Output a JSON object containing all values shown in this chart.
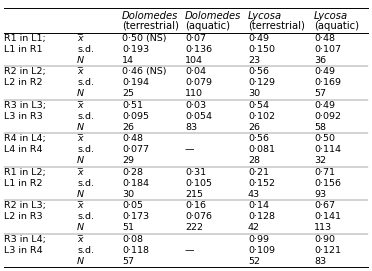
{
  "col_headers_line1": [
    "",
    "",
    "Dolomedes",
    "Dolomedes",
    "Lycosa",
    "Lycosa"
  ],
  "col_headers_line2": [
    "",
    "",
    "(terrestrial)",
    "(aquatic)",
    "(terrestrial)",
    "(aquatic)"
  ],
  "rows": [
    [
      "R1 in L1;",
      "x̅",
      "0·50 (NS)",
      "0·07",
      "0·49",
      "0·48"
    ],
    [
      "L1 in R1",
      "s.d.",
      "0·193",
      "0·136",
      "0·150",
      "0·107"
    ],
    [
      "",
      "N",
      "14",
      "104",
      "23",
      "36"
    ],
    [
      "R2 in L2;",
      "x̅",
      "0·46 (NS)",
      "0·04",
      "0·56",
      "0·49"
    ],
    [
      "L2 in R2",
      "s.d.",
      "0·194",
      "0·079",
      "0·129",
      "0·169"
    ],
    [
      "",
      "N",
      "25",
      "110",
      "30",
      "57"
    ],
    [
      "R3 in L3;",
      "x̅",
      "0·51",
      "0·03",
      "0·54",
      "0·49"
    ],
    [
      "L3 in R3",
      "s.d.",
      "0·095",
      "0·054",
      "0·102",
      "0·092"
    ],
    [
      "",
      "N",
      "26",
      "83",
      "26",
      "58"
    ],
    [
      "R4 in L4;",
      "x̅",
      "0·48",
      "",
      "0·56",
      "0·50"
    ],
    [
      "L4 in R4",
      "s.d.",
      "0·077",
      "—",
      "0·081",
      "0·114"
    ],
    [
      "",
      "N",
      "29",
      "",
      "28",
      "32"
    ],
    [
      "R1 in L2;",
      "x̅",
      "0·28",
      "0·31",
      "0·21",
      "0·71"
    ],
    [
      "L1 in R2",
      "s.d.",
      "0·184",
      "0·105",
      "0·152",
      "0·156"
    ],
    [
      "",
      "N",
      "30",
      "215",
      "43",
      "93"
    ],
    [
      "R2 in L3;",
      "x̅",
      "0·05",
      "0·16",
      "0·14",
      "0·67"
    ],
    [
      "L2 in R3",
      "s.d.",
      "0·173",
      "0·076",
      "0·128",
      "0·141"
    ],
    [
      "",
      "N",
      "51",
      "222",
      "42",
      "113"
    ],
    [
      "R3 in L4;",
      "x̅",
      "0·08",
      "",
      "0·99",
      "0·90"
    ],
    [
      "L3 in R4",
      "s.d.",
      "0·118",
      "—",
      "0·109",
      "0·121"
    ],
    [
      "",
      "N",
      "57",
      "",
      "52",
      "83"
    ]
  ],
  "group_separators_after": [
    2,
    5,
    8,
    11,
    14,
    17
  ],
  "bg_color": "#ffffff",
  "text_color": "#000000",
  "header_font_size": 7.2,
  "cell_font_size": 6.8
}
